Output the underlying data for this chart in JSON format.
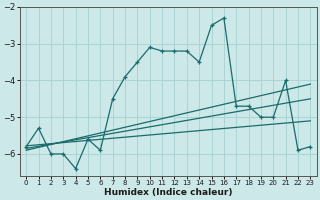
{
  "xlabel": "Humidex (Indice chaleur)",
  "ylabel": "",
  "bg_color": "#cce8e8",
  "grid_color": "#aad4d4",
  "line_color": "#1a6b6b",
  "xlim": [
    -0.5,
    23.5
  ],
  "ylim": [
    -6.6,
    -2.0
  ],
  "yticks": [
    -6,
    -5,
    -4,
    -3,
    -2
  ],
  "xticks": [
    0,
    1,
    2,
    3,
    4,
    5,
    6,
    7,
    8,
    9,
    10,
    11,
    12,
    13,
    14,
    15,
    16,
    17,
    18,
    19,
    20,
    21,
    22,
    23
  ],
  "main_x": [
    0,
    1,
    2,
    3,
    4,
    5,
    6,
    7,
    8,
    9,
    10,
    11,
    12,
    13,
    14,
    15,
    16,
    17,
    18,
    19,
    20,
    21,
    22,
    23
  ],
  "main_y": [
    -5.8,
    -5.3,
    -6.0,
    -6.0,
    -6.4,
    -5.6,
    -5.9,
    -4.5,
    -3.9,
    -3.5,
    -3.1,
    -3.2,
    -3.2,
    -3.2,
    -3.5,
    -2.5,
    -2.3,
    -4.7,
    -4.7,
    -5.0,
    -5.0,
    -4.0,
    -5.9,
    -5.8
  ],
  "line1_x": [
    0,
    23
  ],
  "line1_y": [
    -5.9,
    -4.1
  ],
  "line2_x": [
    0,
    23
  ],
  "line2_y": [
    -5.85,
    -4.5
  ],
  "line3_x": [
    0,
    23
  ],
  "line3_y": [
    -5.78,
    -5.1
  ]
}
